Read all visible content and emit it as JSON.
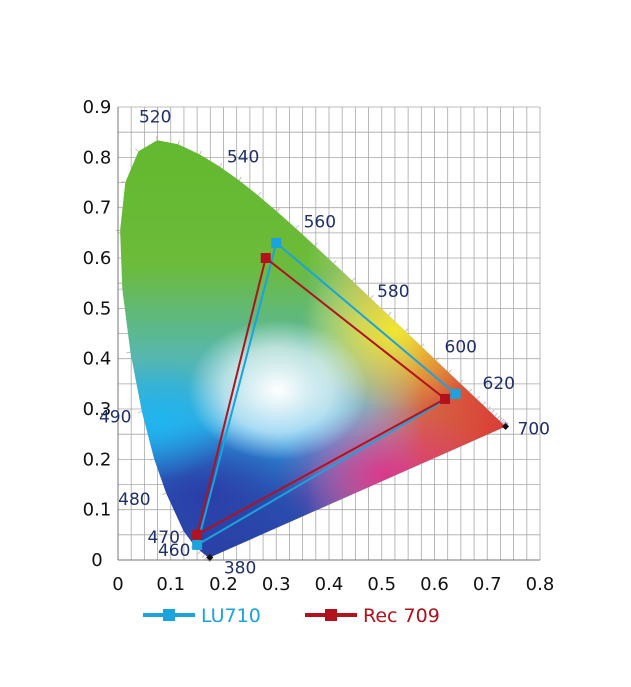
{
  "chart_data": {
    "type": "scatter",
    "xlim": [
      0,
      0.8
    ],
    "ylim": [
      0,
      0.9
    ],
    "x_ticks": [
      "0",
      "0.1",
      "0.2",
      "0.3",
      "0.4",
      "0.5",
      "0.6",
      "0.7",
      "0.8"
    ],
    "y_ticks": [
      "0",
      "0.1",
      "0.2",
      "0.3",
      "0.4",
      "0.5",
      "0.6",
      "0.7",
      "0.8",
      "0.9"
    ],
    "grid": true,
    "legend_position": "bottom",
    "spectral_locus_labels": [
      {
        "text": "380",
        "x": 0.1741,
        "y": 0.005
      },
      {
        "text": "460",
        "x": 0.144,
        "y": 0.0297
      },
      {
        "text": "470",
        "x": 0.1241,
        "y": 0.0578
      },
      {
        "text": "480",
        "x": 0.0913,
        "y": 0.1327
      },
      {
        "text": "490",
        "x": 0.0454,
        "y": 0.295
      },
      {
        "text": "520",
        "x": 0.0743,
        "y": 0.8338
      },
      {
        "text": "540",
        "x": 0.2296,
        "y": 0.7543
      },
      {
        "text": "560",
        "x": 0.3731,
        "y": 0.6245
      },
      {
        "text": "580",
        "x": 0.5125,
        "y": 0.4866
      },
      {
        "text": "600",
        "x": 0.627,
        "y": 0.3725
      },
      {
        "text": "620",
        "x": 0.6915,
        "y": 0.3083
      },
      {
        "text": "700",
        "x": 0.7347,
        "y": 0.2653
      }
    ],
    "series": [
      {
        "name": "LU710",
        "color": "#1aa3dc",
        "points": [
          [
            0.64,
            0.33
          ],
          [
            0.3,
            0.63
          ],
          [
            0.15,
            0.03
          ]
        ]
      },
      {
        "name": "Rec 709",
        "color": "#b1121b",
        "points": [
          [
            0.62,
            0.32
          ],
          [
            0.28,
            0.6
          ],
          [
            0.15,
            0.05
          ]
        ]
      }
    ]
  }
}
